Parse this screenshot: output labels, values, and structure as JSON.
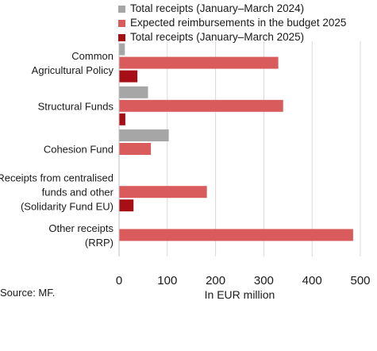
{
  "chart_data": {
    "type": "bar",
    "orientation": "horizontal",
    "categories": [
      [
        "Common",
        "Agricultural Policy"
      ],
      [
        "Structural Funds"
      ],
      [
        "Cohesion Fund"
      ],
      [
        "Receipts from centralised",
        "funds and other",
        "(Solidarity Fund EU)"
      ],
      [
        "Other receipts",
        "(RRP)"
      ]
    ],
    "series": [
      {
        "name": "Total receipts (January–March 2024)",
        "color": "#a6a6a6",
        "values": [
          12,
          60,
          103,
          0,
          0
        ]
      },
      {
        "name": "Expected reimbursements in the budget 2025",
        "color": "#d95b5b",
        "values": [
          330,
          340,
          66,
          182,
          485
        ]
      },
      {
        "name": "Total receipts (January–March 2025)",
        "color": "#a50f15",
        "values": [
          38,
          13,
          0,
          30,
          0
        ]
      }
    ],
    "xlim": [
      0,
      500
    ],
    "xticks": [
      "0",
      "100",
      "200",
      "300",
      "400",
      "500"
    ],
    "xlabel": "In EUR million",
    "grid": true,
    "legend_position": "top"
  },
  "source": "Source: MF."
}
